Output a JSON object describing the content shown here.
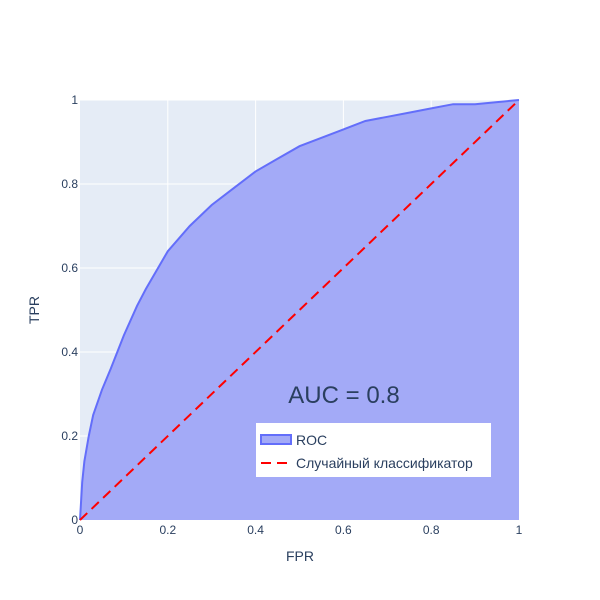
{
  "chart_data": {
    "type": "area",
    "xlabel": "FPR",
    "ylabel": "TPR",
    "xlim": [
      0,
      1
    ],
    "ylim": [
      0,
      1
    ],
    "x_ticks": [
      "0",
      "0.2",
      "0.4",
      "0.6",
      "0.8",
      "1"
    ],
    "y_ticks": [
      "0",
      "0.2",
      "0.4",
      "0.6",
      "0.8",
      "1"
    ],
    "grid": true,
    "legend_position": "bottom-right",
    "annotation": "AUC = 0.8",
    "series": [
      {
        "name": "ROC",
        "type": "area",
        "color": "#636efa",
        "fill_color": "#a3aaf7",
        "x": [
          0,
          0.005,
          0.01,
          0.02,
          0.03,
          0.05,
          0.07,
          0.1,
          0.13,
          0.15,
          0.2,
          0.25,
          0.3,
          0.35,
          0.4,
          0.45,
          0.5,
          0.55,
          0.6,
          0.65,
          0.7,
          0.75,
          0.8,
          0.85,
          0.9,
          0.95,
          1.0
        ],
        "y": [
          0,
          0.09,
          0.14,
          0.2,
          0.25,
          0.31,
          0.36,
          0.44,
          0.51,
          0.55,
          0.64,
          0.7,
          0.75,
          0.79,
          0.83,
          0.86,
          0.89,
          0.91,
          0.93,
          0.95,
          0.96,
          0.97,
          0.98,
          0.99,
          0.99,
          0.995,
          1.0
        ]
      },
      {
        "name": "Случайный классификатор",
        "type": "line",
        "dash": "dash",
        "color": "#ff0000",
        "x": [
          0,
          1
        ],
        "y": [
          0,
          1
        ]
      }
    ]
  }
}
